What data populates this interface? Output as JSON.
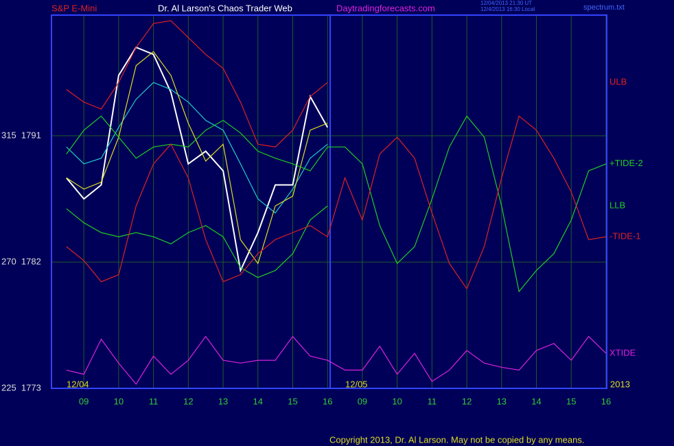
{
  "chart_data": {
    "type": "line",
    "title": "Dr. Al Larson's Chaos Trader Web",
    "instrument": "S&P E-Mini",
    "website": "Daytradingforecasts.com",
    "timestamps": [
      "12/04/2013 21:30 UT",
      "12/4/2013 16:30 Local"
    ],
    "file": "spectrum.txt",
    "date_labels": [
      "12/04",
      "12/05"
    ],
    "year_label": "2013",
    "copyright": "Copyright 2013, Dr. Al Larson. May not be copied by any means.",
    "grid": true,
    "xlim": [
      0.07,
      16.02
    ],
    "ylim": [
      1773,
      1799.6
    ],
    "xticks": [
      {
        "value": 1,
        "label": "09"
      },
      {
        "value": 2,
        "label": "10"
      },
      {
        "value": 3,
        "label": "11"
      },
      {
        "value": 4,
        "label": "12"
      },
      {
        "value": 5,
        "label": "13"
      },
      {
        "value": 6,
        "label": "14"
      },
      {
        "value": 7,
        "label": "15"
      },
      {
        "value": 8,
        "label": "16"
      },
      {
        "value": 9,
        "label": "09"
      },
      {
        "value": 10,
        "label": "10"
      },
      {
        "value": 11,
        "label": "11"
      },
      {
        "value": 12,
        "label": "12"
      },
      {
        "value": 13,
        "label": "13"
      },
      {
        "value": 14,
        "label": "14"
      },
      {
        "value": 15,
        "label": "15"
      },
      {
        "value": 16,
        "label": "16"
      }
    ],
    "yticks": [
      {
        "value": 1773,
        "label": "225  1773"
      },
      {
        "value": 1782,
        "label": "270  1782"
      },
      {
        "value": 1791,
        "label": "315  1791"
      }
    ],
    "x": [
      0.5,
      1,
      1.5,
      2,
      2.5,
      3,
      3.5,
      4,
      4.5,
      5,
      5.5,
      6,
      6.5,
      7,
      7.5,
      8,
      8.5,
      9,
      9.5,
      10,
      10.5,
      11,
      11.5,
      12,
      12.5,
      13,
      13.5,
      14,
      14.5,
      15,
      15.5,
      16
    ],
    "series": [
      {
        "color": "#ffffff",
        "values": [
          1788.0,
          1786.5,
          1787.5,
          1795.3,
          1797.3,
          1796.8,
          1794.1,
          1789.0,
          1789.9,
          1788.5,
          1781.4,
          1784.1,
          1787.5,
          1787.5,
          1793.8,
          1791.6,
          null,
          null,
          null,
          null,
          null,
          null,
          null,
          null,
          null,
          null,
          null,
          null,
          null,
          null,
          null,
          null
        ]
      },
      {
        "name": "ULB",
        "color": "#e02020",
        "values": [
          1794.3,
          1793.4,
          1792.9,
          1794.8,
          1797.3,
          1799.0,
          1799.2,
          1798.0,
          1796.8,
          1795.8,
          1793.4,
          1790.4,
          1790.2,
          1791.4,
          1793.8,
          1794.8,
          null,
          null,
          null,
          null,
          null,
          null,
          null,
          null,
          null,
          null,
          null,
          null,
          null,
          null,
          null,
          null
        ]
      },
      {
        "name": "LLB",
        "color": "#22cc22",
        "values": [
          1785.8,
          1784.8,
          1784.1,
          1783.8,
          1784.1,
          1783.8,
          1783.3,
          1784.1,
          1784.6,
          1783.8,
          1781.6,
          1780.9,
          1781.4,
          1782.6,
          1785.0,
          1786.0,
          null,
          null,
          null,
          null,
          null,
          null,
          null,
          null,
          null,
          null,
          null,
          null,
          null,
          null,
          null,
          null
        ]
      },
      {
        "color": "#22cccc",
        "values": [
          1790.2,
          1789.0,
          1789.4,
          1791.6,
          1793.6,
          1794.8,
          1794.3,
          1793.4,
          1792.1,
          1791.4,
          1789.0,
          1786.5,
          1785.5,
          1787.2,
          1789.4,
          1790.4,
          null,
          null,
          null,
          null,
          null,
          null,
          null,
          null,
          null,
          null,
          null,
          null,
          null,
          null,
          null,
          null
        ]
      },
      {
        "color": "#dddd22",
        "values": [
          1788.0,
          1787.2,
          1787.7,
          1790.9,
          1796.0,
          1797.0,
          1795.3,
          1791.9,
          1789.2,
          1790.4,
          1783.6,
          1781.9,
          1786.0,
          1786.7,
          1791.4,
          1791.9,
          null,
          null,
          null,
          null,
          null,
          null,
          null,
          null,
          null,
          null,
          null,
          null,
          null,
          null,
          null,
          null
        ]
      },
      {
        "name": "+TIDE-2",
        "color": "#22cc22",
        "values": [
          1789.7,
          1791.4,
          1792.4,
          1790.9,
          1789.4,
          1790.2,
          1790.4,
          1790.2,
          1791.4,
          1792.1,
          1791.2,
          1789.9,
          1789.4,
          1789.0,
          1788.5,
          1790.2,
          1790.2,
          1789.0,
          1784.6,
          1781.9,
          1783.1,
          1786.5,
          1790.2,
          1792.4,
          1790.9,
          1786.0,
          1779.9,
          1781.4,
          1782.6,
          1785.0,
          1788.5,
          1789.0
        ]
      },
      {
        "name": "-TIDE-1",
        "color": "#dd2222",
        "values": [
          1783.1,
          1782.1,
          1780.6,
          1781.1,
          1786.0,
          1789.0,
          1790.4,
          1788.0,
          1783.6,
          1780.6,
          1781.1,
          1782.6,
          1783.6,
          1784.1,
          1784.6,
          1783.8,
          1788.0,
          1785.0,
          1789.7,
          1790.9,
          1789.4,
          1785.5,
          1781.9,
          1780.1,
          1783.1,
          1788.0,
          1792.4,
          1791.4,
          1789.4,
          1787.0,
          1783.6,
          1783.8
        ]
      },
      {
        "name": "XTIDE",
        "color": "#dd22dd",
        "values": [
          1774.3,
          1774.0,
          1776.5,
          1774.8,
          1773.3,
          1775.3,
          1774.0,
          1775.0,
          1776.7,
          1775.0,
          1774.8,
          1775.0,
          1775.0,
          1776.7,
          1775.3,
          1775.0,
          1774.3,
          1774.3,
          1776.0,
          1774.0,
          1775.5,
          1773.5,
          1774.3,
          1775.7,
          1774.8,
          1774.5,
          1774.3,
          1775.7,
          1776.2,
          1775.0,
          1776.7,
          1775.5
        ]
      }
    ]
  }
}
